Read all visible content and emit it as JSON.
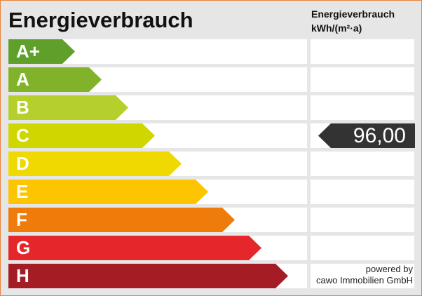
{
  "header": {
    "title": "Energieverbrauch",
    "column_title_line1": "Energieverbrauch",
    "column_title_line2": "kWh/(m²·a)"
  },
  "classes": [
    {
      "label": "A+",
      "color": "#5fa02a"
    },
    {
      "label": "A",
      "color": "#80b32a"
    },
    {
      "label": "B",
      "color": "#b5cf2d"
    },
    {
      "label": "C",
      "color": "#cfd600"
    },
    {
      "label": "D",
      "color": "#efd900"
    },
    {
      "label": "E",
      "color": "#fdc500"
    },
    {
      "label": "F",
      "color": "#ef7b0a"
    },
    {
      "label": "G",
      "color": "#e5272b"
    },
    {
      "label": "H",
      "color": "#a41d24"
    }
  ],
  "indicator": {
    "value": "96,00",
    "class_label": "C",
    "color": "#333333"
  },
  "footer": {
    "line1": "powered by",
    "line2": "cawo Immobilien GmbH"
  }
}
